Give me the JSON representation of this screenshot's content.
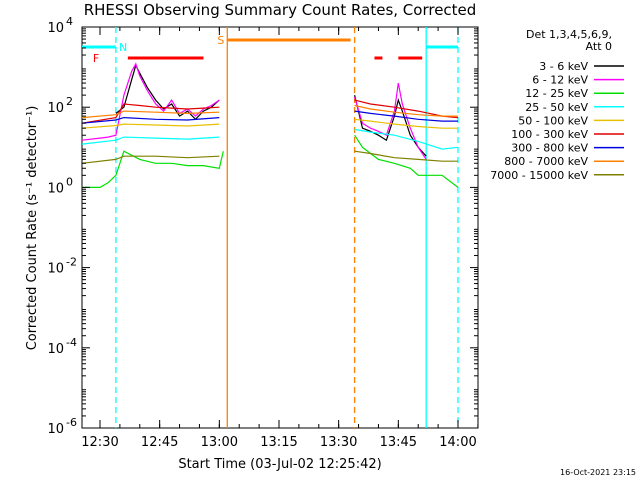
{
  "chart_data": {
    "type": "line",
    "title": "RHESSI Observing Summary Count Rates, Corrected",
    "ylabel": "Corrected Count Rate (s⁻¹ detector⁻¹)",
    "xlabel": "Start Time (03-Jul-02 12:25:42)",
    "footer_stamp": "16-Oct-2021 23:15",
    "y_scale": "log",
    "ylim": [
      1e-06,
      10000.0
    ],
    "xlim_minutes": [
      -5.7,
      73.8
    ],
    "x_ticks": [
      {
        "t": 0,
        "label": "12:30"
      },
      {
        "t": 15,
        "label": "12:45"
      },
      {
        "t": 30,
        "label": "13:00"
      },
      {
        "t": 45,
        "label": "13:15"
      },
      {
        "t": 60,
        "label": "13:30"
      },
      {
        "t": 75,
        "label": "13:45"
      },
      {
        "t": 90,
        "label": "14:00"
      }
    ],
    "y_ticks": [
      {
        "exp": -6,
        "label": "10",
        "sup": "-6"
      },
      {
        "exp": -4,
        "label": "10",
        "sup": "-4"
      },
      {
        "exp": -2,
        "label": "10",
        "sup": "-2"
      },
      {
        "exp": 0,
        "label": "10",
        "sup": "0"
      },
      {
        "exp": 2,
        "label": "10",
        "sup": "2"
      },
      {
        "exp": 4,
        "label": "10",
        "sup": "4"
      }
    ],
    "legend": {
      "header": [
        "Det 1,3,4,5,6,9,",
        "Att 0"
      ],
      "placement": "right",
      "entries": [
        {
          "label": "3 - 6 keV",
          "color": "#000000"
        },
        {
          "label": "6 - 12 keV",
          "color": "#ff00ff"
        },
        {
          "label": "12 - 25 keV",
          "color": "#00e000"
        },
        {
          "label": "25 - 50 keV",
          "color": "#00ffff"
        },
        {
          "label": "50 - 100 keV",
          "color": "#e8c000"
        },
        {
          "label": "100 - 300 keV",
          "color": "#e00000"
        },
        {
          "label": "300 - 800 keV",
          "color": "#0000e0"
        },
        {
          "label": "800 - 7000 keV",
          "color": "#ff8000"
        },
        {
          "label": "7000 - 15000 keV",
          "color": "#808000"
        }
      ]
    },
    "markers": [
      {
        "label": "F",
        "color": "#ff0000",
        "start": 7,
        "end": 26
      },
      {
        "label": "F",
        "color": "#ff0000",
        "start": 69,
        "end": 71
      },
      {
        "label": "F",
        "color": "#ff0000",
        "start": 75,
        "end": 81
      },
      {
        "label": "N",
        "color": "#00ffff",
        "start": -7,
        "end": 4
      },
      {
        "label": "N",
        "color": "#00ffff",
        "start": 82,
        "end": 90
      },
      {
        "label": "S",
        "color": "#ff8000",
        "start": 32,
        "end": 63
      }
    ],
    "vlines": [
      {
        "t": 4,
        "color": "#00ffff",
        "style": "dashed"
      },
      {
        "t": 32,
        "color": "#ff8000",
        "style": "solid"
      },
      {
        "t": 64,
        "color": "#ff8000",
        "style": "dashed"
      },
      {
        "t": 82,
        "color": "#00ffff",
        "style": "solid"
      },
      {
        "t": 90,
        "color": "#00ffff",
        "style": "dashed"
      }
    ],
    "gaps": [
      [
        32,
        64
      ]
    ],
    "series": [
      {
        "name": "3 - 6 keV",
        "color": "#000000",
        "points": [
          [
            4,
            70
          ],
          [
            6,
            100
          ],
          [
            8,
            500
          ],
          [
            9,
            1100
          ],
          [
            10,
            700
          ],
          [
            12,
            300
          ],
          [
            14,
            150
          ],
          [
            16,
            90
          ],
          [
            18,
            120
          ],
          [
            20,
            60
          ],
          [
            22,
            80
          ],
          [
            24,
            50
          ],
          [
            26,
            80
          ],
          [
            28,
            100
          ],
          [
            30,
            150
          ],
          [
            64,
            200
          ],
          [
            66,
            30
          ],
          [
            68,
            25
          ],
          [
            70,
            20
          ],
          [
            72,
            15
          ],
          [
            74,
            60
          ],
          [
            75,
            150
          ],
          [
            76,
            80
          ],
          [
            78,
            20
          ],
          [
            80,
            10
          ],
          [
            82,
            6
          ]
        ]
      },
      {
        "name": "6 - 12 keV",
        "color": "#ff00ff",
        "points": [
          [
            -6,
            15
          ],
          [
            0,
            17
          ],
          [
            2,
            18
          ],
          [
            4,
            20
          ],
          [
            6,
            200
          ],
          [
            8,
            800
          ],
          [
            9,
            1200
          ],
          [
            10,
            600
          ],
          [
            12,
            250
          ],
          [
            14,
            120
          ],
          [
            16,
            80
          ],
          [
            18,
            150
          ],
          [
            20,
            70
          ],
          [
            22,
            90
          ],
          [
            24,
            60
          ],
          [
            26,
            90
          ],
          [
            28,
            110
          ],
          [
            30,
            150
          ],
          [
            64,
            180
          ],
          [
            66,
            40
          ],
          [
            68,
            30
          ],
          [
            70,
            25
          ],
          [
            72,
            20
          ],
          [
            74,
            80
          ],
          [
            75,
            400
          ],
          [
            76,
            120
          ],
          [
            78,
            30
          ],
          [
            80,
            10
          ],
          [
            82,
            5
          ]
        ]
      },
      {
        "name": "12 - 25 keV",
        "color": "#00e000",
        "points": [
          [
            -7,
            1
          ],
          [
            0,
            1
          ],
          [
            2,
            1.3
          ],
          [
            4,
            2
          ],
          [
            6,
            8
          ],
          [
            10,
            5
          ],
          [
            14,
            4
          ],
          [
            18,
            4
          ],
          [
            22,
            3.5
          ],
          [
            26,
            3.5
          ],
          [
            30,
            3
          ],
          [
            31,
            8
          ],
          [
            64,
            20
          ],
          [
            66,
            10
          ],
          [
            70,
            5
          ],
          [
            74,
            4
          ],
          [
            78,
            3
          ],
          [
            80,
            2
          ],
          [
            82,
            2
          ],
          [
            86,
            2
          ],
          [
            90,
            1
          ]
        ]
      },
      {
        "name": "25 - 50 keV",
        "color": "#00ffff",
        "points": [
          [
            -7,
            12
          ],
          [
            4,
            15
          ],
          [
            6,
            18
          ],
          [
            14,
            17
          ],
          [
            22,
            16
          ],
          [
            30,
            18
          ],
          [
            64,
            28
          ],
          [
            68,
            24
          ],
          [
            74,
            20
          ],
          [
            80,
            14
          ],
          [
            86,
            9
          ],
          [
            90,
            10
          ]
        ]
      },
      {
        "name": "50 - 100 keV",
        "color": "#e8c000",
        "points": [
          [
            -7,
            30
          ],
          [
            4,
            35
          ],
          [
            6,
            38
          ],
          [
            14,
            36
          ],
          [
            22,
            34
          ],
          [
            30,
            38
          ],
          [
            64,
            50
          ],
          [
            68,
            45
          ],
          [
            74,
            38
          ],
          [
            80,
            33
          ],
          [
            86,
            30
          ],
          [
            90,
            30
          ]
        ]
      },
      {
        "name": "100 - 300 keV",
        "color": "#e00000",
        "points": [
          [
            -7,
            40
          ],
          [
            4,
            55
          ],
          [
            6,
            120
          ],
          [
            10,
            110
          ],
          [
            14,
            100
          ],
          [
            18,
            95
          ],
          [
            22,
            90
          ],
          [
            26,
            95
          ],
          [
            30,
            100
          ],
          [
            64,
            150
          ],
          [
            68,
            120
          ],
          [
            74,
            100
          ],
          [
            80,
            80
          ],
          [
            86,
            60
          ],
          [
            90,
            55
          ]
        ]
      },
      {
        "name": "300 - 800 keV",
        "color": "#0000e0",
        "points": [
          [
            -7,
            40
          ],
          [
            4,
            48
          ],
          [
            6,
            55
          ],
          [
            14,
            50
          ],
          [
            22,
            48
          ],
          [
            30,
            55
          ],
          [
            64,
            80
          ],
          [
            68,
            70
          ],
          [
            74,
            60
          ],
          [
            80,
            50
          ],
          [
            86,
            45
          ],
          [
            90,
            45
          ]
        ]
      },
      {
        "name": "800 - 7000 keV",
        "color": "#ff8000",
        "points": [
          [
            -7,
            55
          ],
          [
            4,
            65
          ],
          [
            6,
            80
          ],
          [
            14,
            75
          ],
          [
            22,
            70
          ],
          [
            30,
            75
          ],
          [
            64,
            110
          ],
          [
            68,
            90
          ],
          [
            74,
            75
          ],
          [
            80,
            65
          ],
          [
            86,
            60
          ],
          [
            90,
            60
          ]
        ]
      },
      {
        "name": "7000 - 15000 keV",
        "color": "#808000",
        "points": [
          [
            -7,
            4
          ],
          [
            4,
            5
          ],
          [
            6,
            6
          ],
          [
            14,
            6
          ],
          [
            22,
            5.5
          ],
          [
            30,
            6
          ],
          [
            64,
            8
          ],
          [
            68,
            7
          ],
          [
            74,
            5.5
          ],
          [
            80,
            5
          ],
          [
            86,
            4.5
          ],
          [
            90,
            4.5
          ]
        ]
      }
    ]
  }
}
